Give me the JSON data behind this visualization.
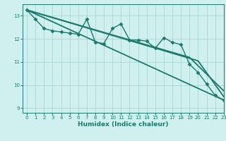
{
  "xlabel": "Humidex (Indice chaleur)",
  "ylabel": "",
  "xlim": [
    -0.5,
    23
  ],
  "ylim": [
    8.8,
    13.5
  ],
  "background_color": "#cff0ee",
  "grid_color": "#a8d8d4",
  "line_color": "#1a7a6e",
  "xticks": [
    0,
    1,
    2,
    3,
    4,
    5,
    6,
    7,
    8,
    9,
    10,
    11,
    12,
    13,
    14,
    15,
    16,
    17,
    18,
    19,
    20,
    21,
    22,
    23
  ],
  "yticks": [
    9,
    10,
    11,
    12,
    13
  ],
  "lines": [
    {
      "x": [
        0,
        1,
        2,
        3,
        4,
        5,
        6,
        7,
        8,
        9,
        10,
        11,
        12,
        13,
        14,
        15,
        16,
        17,
        18,
        19,
        20,
        21,
        22,
        23
      ],
      "y": [
        13.25,
        12.85,
        12.45,
        12.35,
        12.3,
        12.25,
        12.2,
        12.85,
        11.85,
        11.8,
        12.45,
        12.65,
        11.95,
        11.95,
        11.9,
        11.6,
        12.05,
        11.85,
        11.75,
        10.9,
        10.55,
        10.05,
        9.55,
        9.35
      ],
      "marker": "D",
      "markersize": 2.5,
      "linewidth": 1.0
    },
    {
      "x": [
        0,
        23
      ],
      "y": [
        13.25,
        9.35
      ],
      "marker": null,
      "markersize": 0,
      "linewidth": 1.3
    },
    {
      "x": [
        0,
        20,
        23
      ],
      "y": [
        13.25,
        11.05,
        9.5
      ],
      "marker": null,
      "markersize": 0,
      "linewidth": 1.3
    },
    {
      "x": [
        0,
        19,
        23
      ],
      "y": [
        13.25,
        11.2,
        9.75
      ],
      "marker": null,
      "markersize": 0,
      "linewidth": 1.3
    }
  ]
}
